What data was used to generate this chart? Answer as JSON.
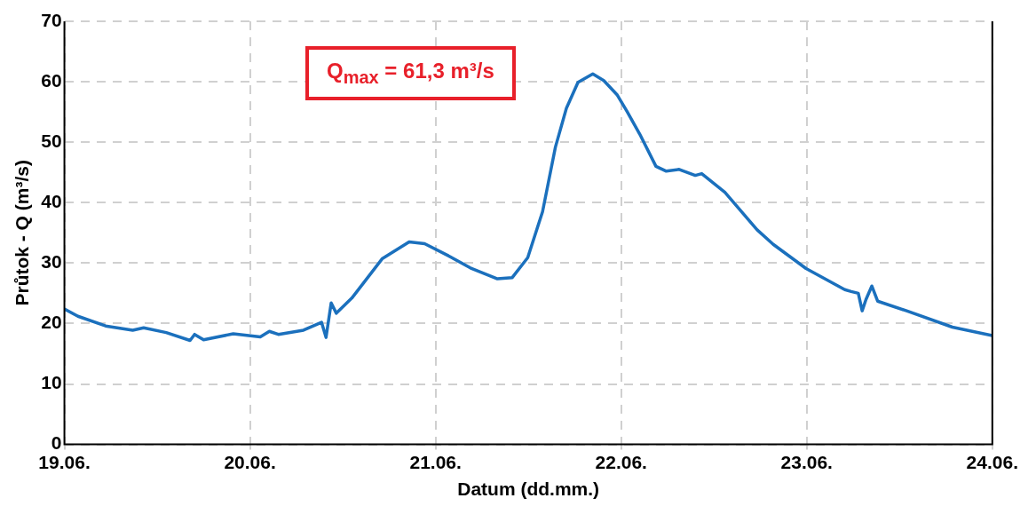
{
  "chart_data": {
    "type": "line",
    "xlabel": "Datum (dd.mm.)",
    "ylabel": "Průtok - Q (m³/s)",
    "annotations": [
      "Q$_{max}$ = 61,3 m³/s"
    ],
    "xlim": [
      "--06-19",
      "--06-24"
    ],
    "xticks": [
      {
        "value": "--06-19",
        "label": "19.06."
      },
      {
        "value": "--06-20",
        "label": "20.06."
      },
      {
        "value": "--06-21",
        "label": "21.06."
      },
      {
        "value": "--06-22",
        "label": "22.06."
      },
      {
        "value": "--06-23",
        "label": "23.06."
      },
      {
        "value": "--06-24",
        "label": "24.06."
      }
    ],
    "ylim": [
      0,
      70
    ],
    "yticks": [
      0,
      10,
      20,
      30,
      40,
      50,
      60,
      70
    ],
    "grid": true,
    "line_style": "solid",
    "marker": "none",
    "series": [
      {
        "color": "#1b70bd",
        "x": [
          "--06-19T00:00",
          "--06-19T01:45",
          "--06-19T05:20",
          "--06-19T08:50",
          "--06-19T10:15",
          "--06-19T13:10",
          "--06-19T16:15",
          "--06-19T16:50",
          "--06-19T18:00",
          "--06-19T21:50",
          "--06-20T01:20",
          "--06-20T02:30",
          "--06-20T03:40",
          "--06-20T06:55",
          "--06-20T09:15",
          "--06-20T09:50",
          "--06-20T10:30",
          "--06-20T11:10",
          "--06-20T13:10",
          "--06-20T17:05",
          "--06-20T20:35",
          "--06-20T22:35",
          "--06-21T01:40",
          "--06-21T04:30",
          "--06-21T08:00",
          "--06-21T09:55",
          "--06-21T11:55",
          "--06-21T13:50",
          "--06-21T15:30",
          "--06-21T16:55",
          "--06-21T18:25",
          "--06-21T20:20",
          "--06-21T21:45",
          "--06-21T23:30",
          "--06-22T00:45",
          "--06-22T02:25",
          "--06-22T04:30",
          "--06-22T05:50",
          "--06-22T07:30",
          "--06-22T09:35",
          "--06-22T10:25",
          "--06-22T13:25",
          "--06-22T17:35",
          "--06-22T19:40",
          "--06-22T23:55",
          "--06-23T04:55",
          "--06-23T05:45",
          "--06-23T06:40",
          "--06-23T07:10",
          "--06-23T07:40",
          "--06-23T08:25",
          "--06-23T09:10",
          "--06-23T12:55",
          "--06-23T18:50",
          "--06-24T00:00"
        ],
        "values": [
          22.4,
          21.2,
          19.6,
          18.9,
          19.3,
          18.5,
          17.2,
          18.2,
          17.3,
          18.3,
          17.8,
          18.7,
          18.2,
          18.9,
          20.2,
          17.7,
          23.4,
          21.7,
          24.2,
          30.7,
          33.5,
          33.2,
          31.2,
          29.2,
          27.4,
          27.6,
          30.9,
          38.5,
          49.2,
          55.6,
          59.9,
          61.3,
          60.2,
          57.8,
          55.1,
          51.3,
          46.0,
          45.2,
          45.5,
          44.5,
          44.8,
          41.7,
          35.5,
          33.1,
          29.1,
          25.6,
          25.3,
          25.0,
          22.1,
          24.0,
          26.2,
          23.7,
          22.1,
          19.4,
          18.0
        ]
      }
    ]
  }
}
